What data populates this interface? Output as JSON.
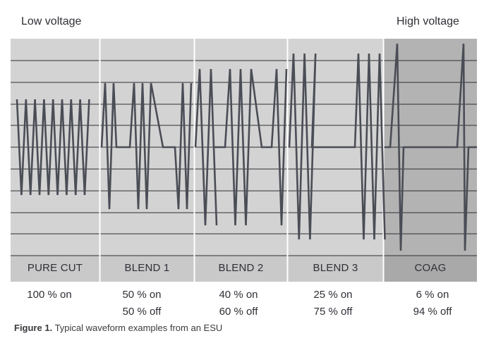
{
  "header": {
    "low_voltage": "Low voltage",
    "high_voltage": "High voltage"
  },
  "modes": [
    {
      "name": "PURE CUT",
      "on": "100 % on",
      "off": ""
    },
    {
      "name": "BLEND 1",
      "on": "50 % on",
      "off": "50 % off"
    },
    {
      "name": "BLEND 2",
      "on": "40 % on",
      "off": "60 % off"
    },
    {
      "name": "BLEND 3",
      "on": "25 % on",
      "off": "75 % off"
    },
    {
      "name": "COAG",
      "on": "6 % on",
      "off": "94 % off"
    }
  ],
  "caption": {
    "label": "Figure 1.",
    "text": "Typical waveform examples from an ESU"
  },
  "colors": {
    "panel": "#d3d3d3",
    "panel_dark": "#b3b3b3",
    "label_band": "#c9c9c9",
    "label_band_dark": "#a9a9a9",
    "line": "#4b4d56",
    "grid": "#2f2f36"
  }
}
